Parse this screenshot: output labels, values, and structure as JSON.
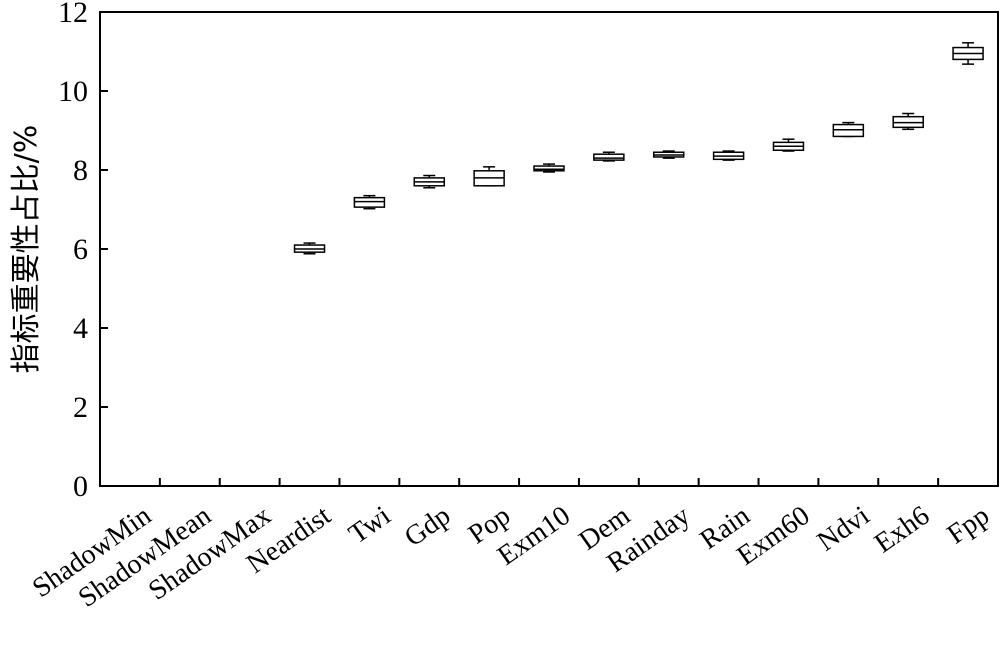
{
  "chart_data": {
    "type": "box",
    "title": "",
    "xlabel": "",
    "ylabel": "指标重要性占比/%",
    "ylim": [
      0,
      12
    ],
    "yticks": [
      0,
      2,
      4,
      6,
      8,
      10,
      12
    ],
    "grid": false,
    "categories": [
      "ShadowMin",
      "ShadowMean",
      "ShadowMax",
      "Neardist",
      "Twi",
      "Gdp",
      "Pop",
      "Exm10",
      "Dem",
      "Rainday",
      "Rain",
      "Exm60",
      "Ndvi",
      "Exh6",
      "Fpp"
    ],
    "boxes": [
      null,
      null,
      null,
      {
        "min": 5.88,
        "q1": 5.92,
        "median": 6.0,
        "q3": 6.1,
        "max": 6.15
      },
      {
        "min": 7.02,
        "q1": 7.06,
        "median": 7.2,
        "q3": 7.3,
        "max": 7.35
      },
      {
        "min": 7.55,
        "q1": 7.6,
        "median": 7.7,
        "q3": 7.8,
        "max": 7.86
      },
      {
        "min": 7.6,
        "q1": 7.6,
        "median": 7.8,
        "q3": 7.98,
        "max": 8.08
      },
      {
        "min": 7.95,
        "q1": 7.98,
        "median": 8.02,
        "q3": 8.1,
        "max": 8.15
      },
      {
        "min": 8.23,
        "q1": 8.25,
        "median": 8.3,
        "q3": 8.4,
        "max": 8.45
      },
      {
        "min": 8.3,
        "q1": 8.33,
        "median": 8.38,
        "q3": 8.45,
        "max": 8.48
      },
      {
        "min": 8.25,
        "q1": 8.27,
        "median": 8.35,
        "q3": 8.45,
        "max": 8.48
      },
      {
        "min": 8.48,
        "q1": 8.5,
        "median": 8.6,
        "q3": 8.7,
        "max": 8.78
      },
      {
        "min": 8.85,
        "q1": 8.85,
        "median": 9.02,
        "q3": 9.15,
        "max": 9.2
      },
      {
        "min": 9.03,
        "q1": 9.08,
        "median": 9.2,
        "q3": 9.35,
        "max": 9.43
      },
      {
        "min": 10.68,
        "q1": 10.8,
        "median": 10.95,
        "q3": 11.1,
        "max": 11.22
      }
    ]
  }
}
